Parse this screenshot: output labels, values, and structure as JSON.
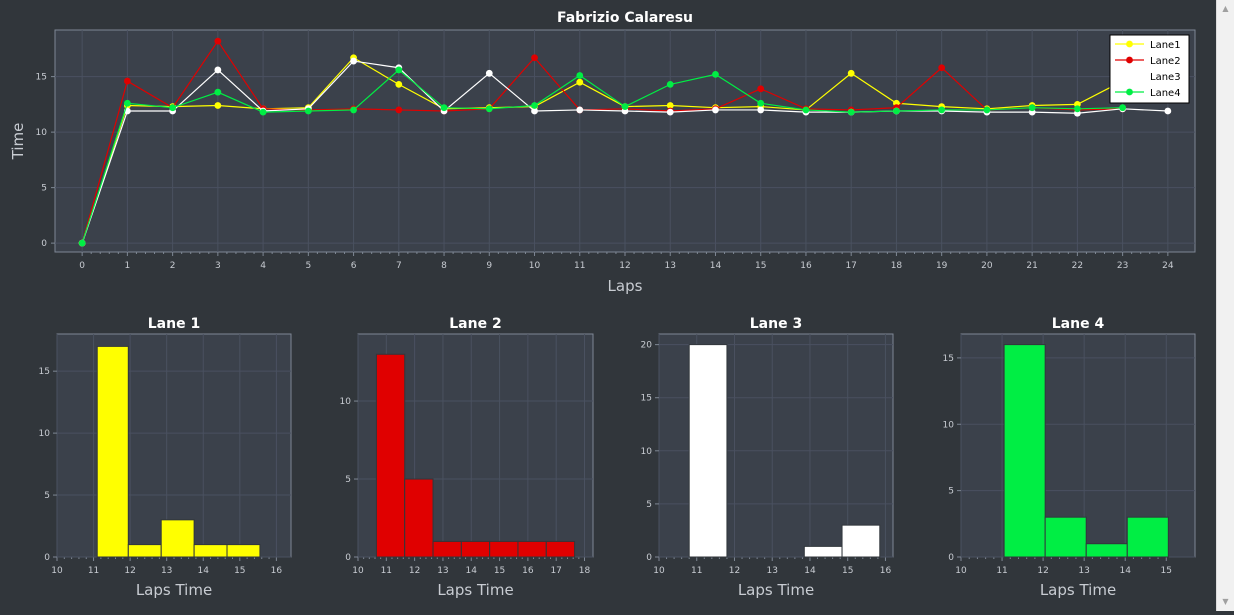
{
  "colors": {
    "background": "#31363b",
    "plot_background": "#3b414b",
    "grid": "#4a5160",
    "axis": "#7e8794",
    "text": "#c8ccd2",
    "title": "#ffffff",
    "lane1": "#ffff00",
    "lane2": "#e00000",
    "lane3": "#ffffff",
    "lane4": "#00ee44"
  },
  "chart_data": [
    {
      "type": "line",
      "title": "Fabrizio Calaresu",
      "xlabel": "Laps",
      "ylabel": "Time",
      "xlim": [
        -0.6,
        24.6
      ],
      "ylim": [
        -0.8,
        19.2
      ],
      "x_ticks": [
        0,
        1,
        2,
        3,
        4,
        5,
        6,
        7,
        8,
        9,
        10,
        11,
        12,
        13,
        14,
        15,
        16,
        17,
        18,
        19,
        20,
        21,
        22,
        23,
        24
      ],
      "y_ticks": [
        0,
        5,
        10,
        15
      ],
      "grid": true,
      "legend": "top-right",
      "series": [
        {
          "name": "Lane1",
          "color": "#ffff00",
          "x": [
            0,
            1,
            2,
            3,
            4,
            5,
            6,
            7,
            8,
            9,
            10,
            11,
            12,
            13,
            14,
            15,
            16,
            17,
            18,
            19,
            20,
            21,
            22,
            23
          ],
          "y": [
            0,
            12.4,
            12.3,
            12.4,
            12.1,
            12.2,
            16.7,
            14.3,
            12.1,
            12.2,
            12.3,
            14.5,
            12.3,
            12.4,
            12.2,
            12.3,
            12.0,
            15.3,
            12.6,
            12.3,
            12.1,
            12.4,
            12.5,
            14.6
          ]
        },
        {
          "name": "Lane2",
          "color": "#e00000",
          "x": [
            0,
            1,
            2,
            3,
            4,
            5,
            6,
            7,
            8,
            9,
            10,
            11,
            12,
            13,
            14,
            15,
            16,
            17,
            18,
            19,
            20,
            21,
            22,
            23
          ],
          "y": [
            0,
            14.6,
            12.2,
            18.2,
            12.1,
            12.0,
            12.1,
            12.0,
            11.9,
            12.1,
            16.7,
            12.0,
            12.1,
            11.9,
            12.1,
            13.9,
            12.1,
            12.0,
            12.2,
            15.8,
            12.0,
            12.2,
            12.0,
            12.1
          ]
        },
        {
          "name": "Lane3",
          "color": "#ffffff",
          "x": [
            0,
            1,
            2,
            3,
            4,
            5,
            6,
            7,
            8,
            9,
            10,
            11,
            12,
            13,
            14,
            15,
            16,
            17,
            18,
            19,
            20,
            21,
            22,
            23,
            24
          ],
          "y": [
            0,
            11.9,
            11.9,
            15.6,
            11.9,
            12.1,
            16.4,
            15.8,
            11.9,
            15.3,
            11.9,
            12.0,
            11.9,
            11.8,
            12.0,
            12.0,
            11.8,
            11.8,
            11.9,
            11.9,
            11.8,
            11.8,
            11.7,
            12.1,
            11.9
          ]
        },
        {
          "name": "Lane4",
          "color": "#00ee44",
          "x": [
            0,
            1,
            2,
            3,
            4,
            5,
            6,
            7,
            8,
            9,
            10,
            11,
            12,
            13,
            14,
            15,
            16,
            17,
            18,
            19,
            20,
            21,
            22,
            23
          ],
          "y": [
            0,
            12.6,
            12.2,
            13.6,
            11.8,
            11.9,
            12.0,
            15.6,
            12.2,
            12.1,
            12.4,
            15.1,
            12.3,
            14.3,
            15.2,
            12.6,
            12.0,
            11.8,
            11.9,
            12.0,
            12.0,
            12.2,
            12.1,
            12.2
          ]
        }
      ]
    },
    {
      "type": "bar",
      "title": "Lane 1",
      "xlabel": "Laps Time",
      "color": "#ffff00",
      "xlim": [
        10,
        16.4
      ],
      "ylim": [
        0,
        18
      ],
      "x_ticks": [
        10,
        11,
        12,
        13,
        14,
        15,
        16
      ],
      "y_ticks": [
        0,
        5,
        10,
        15
      ],
      "bins": [
        {
          "x0": 11.1,
          "x1": 11.95,
          "value": 17
        },
        {
          "x0": 11.95,
          "x1": 12.85,
          "value": 1
        },
        {
          "x0": 12.85,
          "x1": 13.75,
          "value": 3
        },
        {
          "x0": 13.75,
          "x1": 14.65,
          "value": 1
        },
        {
          "x0": 14.65,
          "x1": 15.55,
          "value": 1
        }
      ]
    },
    {
      "type": "bar",
      "title": "Lane 2",
      "xlabel": "Laps Time",
      "color": "#e00000",
      "xlim": [
        10,
        18.3
      ],
      "ylim": [
        0,
        14.3
      ],
      "x_ticks": [
        10,
        11,
        12,
        13,
        14,
        15,
        16,
        17,
        18
      ],
      "y_ticks": [
        0,
        5,
        10
      ],
      "bins": [
        {
          "x0": 10.65,
          "x1": 11.65,
          "value": 13
        },
        {
          "x0": 11.65,
          "x1": 12.65,
          "value": 5
        },
        {
          "x0": 12.65,
          "x1": 13.65,
          "value": 1
        },
        {
          "x0": 13.65,
          "x1": 14.65,
          "value": 1
        },
        {
          "x0": 14.65,
          "x1": 15.65,
          "value": 1
        },
        {
          "x0": 15.65,
          "x1": 16.65,
          "value": 1
        },
        {
          "x0": 16.65,
          "x1": 17.65,
          "value": 1
        }
      ]
    },
    {
      "type": "bar",
      "title": "Lane 3",
      "xlabel": "Laps Time",
      "color": "#ffffff",
      "xlim": [
        10,
        16.2
      ],
      "ylim": [
        0,
        21
      ],
      "x_ticks": [
        10,
        11,
        12,
        13,
        14,
        15,
        16
      ],
      "y_ticks": [
        0,
        5,
        10,
        15,
        20
      ],
      "bins": [
        {
          "x0": 10.8,
          "x1": 11.8,
          "value": 20
        },
        {
          "x0": 13.85,
          "x1": 14.85,
          "value": 1
        },
        {
          "x0": 14.85,
          "x1": 15.85,
          "value": 3
        }
      ]
    },
    {
      "type": "bar",
      "title": "Lane 4",
      "xlabel": "Laps Time",
      "color": "#00ee44",
      "xlim": [
        10,
        15.7
      ],
      "ylim": [
        0,
        16.8
      ],
      "x_ticks": [
        10,
        11,
        12,
        13,
        14,
        15
      ],
      "y_ticks": [
        0,
        5,
        10,
        15
      ],
      "bins": [
        {
          "x0": 11.05,
          "x1": 12.05,
          "value": 16
        },
        {
          "x0": 12.05,
          "x1": 13.05,
          "value": 3
        },
        {
          "x0": 13.05,
          "x1": 14.05,
          "value": 1
        },
        {
          "x0": 14.05,
          "x1": 15.05,
          "value": 3
        }
      ]
    }
  ]
}
